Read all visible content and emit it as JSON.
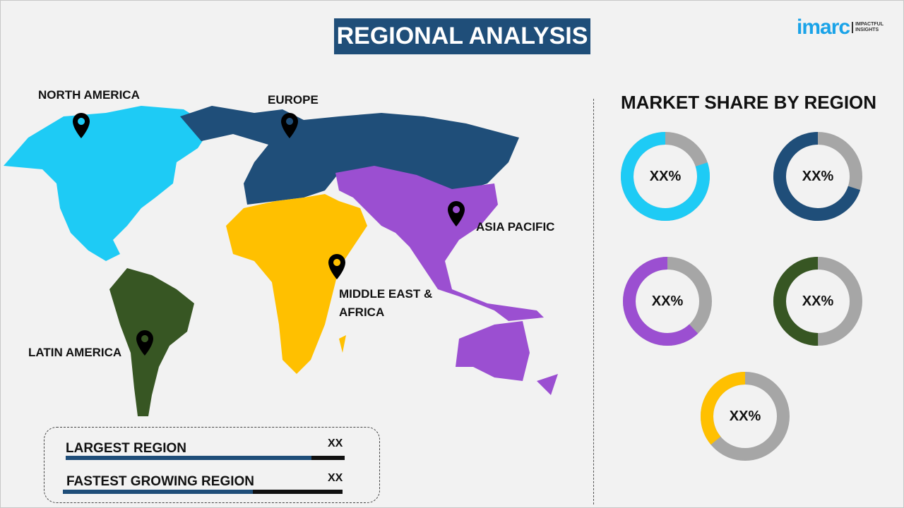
{
  "header": {
    "title": "REGIONAL ANALYSIS",
    "logo_text": "imarc",
    "logo_tagline": [
      "IMPACTFUL",
      "INSIGHTS"
    ]
  },
  "map": {
    "regions": [
      {
        "label": "NORTH AMERICA",
        "color": "#1ecbf5"
      },
      {
        "label": "EUROPE",
        "color": "#1f4e79"
      },
      {
        "label": "ASIA PACIFIC",
        "color": "#9b4fd1"
      },
      {
        "label": "MIDDLE EAST & AFRICA",
        "color": "#ffc000"
      },
      {
        "label": "LATIN AMERICA",
        "color": "#375623"
      }
    ]
  },
  "market_share": {
    "title": "MARKET SHARE BY REGION",
    "remainder_color": "#a6a6a6",
    "donuts": [
      {
        "region": "NORTH AMERICA",
        "value_label": "XX%",
        "fill_fraction": 0.8,
        "color": "#1ecbf5"
      },
      {
        "region": "EUROPE",
        "value_label": "XX%",
        "fill_fraction": 0.7,
        "color": "#1f4e79"
      },
      {
        "region": "ASIA PACIFIC",
        "value_label": "XX%",
        "fill_fraction": 0.62,
        "color": "#9b4fd1"
      },
      {
        "region": "LATIN AMERICA",
        "value_label": "XX%",
        "fill_fraction": 0.5,
        "color": "#375623"
      },
      {
        "region": "MIDDLE EAST & AFRICA",
        "value_label": "XX%",
        "fill_fraction": 0.36,
        "color": "#ffc000"
      }
    ]
  },
  "summary": {
    "largest": {
      "label": "LARGEST REGION",
      "value": "XX",
      "fill_fraction": 0.88
    },
    "fastest": {
      "label": "FASTEST GROWING REGION",
      "value": "XX",
      "fill_fraction": 0.68
    }
  }
}
